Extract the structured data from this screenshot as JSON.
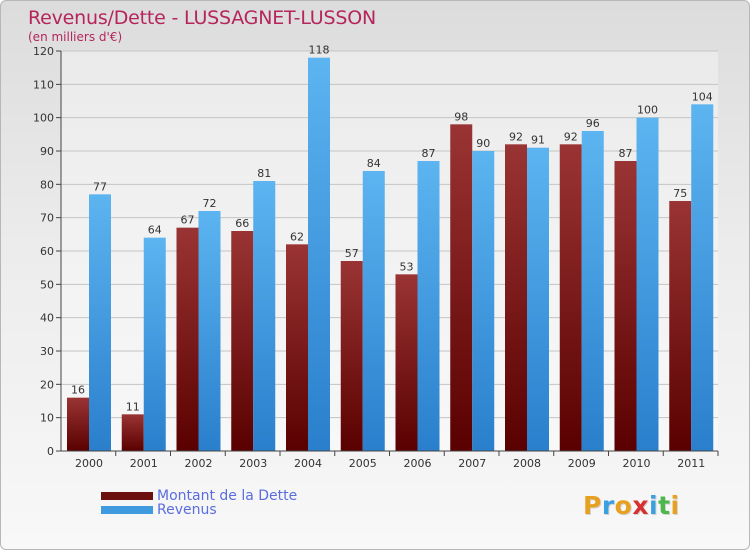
{
  "header": {
    "title": "Revenus/Dette - LUSSAGNET-LUSSON",
    "subtitle": "(en milliers d'€)"
  },
  "chart_data": {
    "type": "bar",
    "title": "Revenus/Dette - LUSSAGNET-LUSSON",
    "subtitle": "(en milliers d'€)",
    "categories": [
      "2000",
      "2001",
      "2002",
      "2003",
      "2004",
      "2005",
      "2006",
      "2007",
      "2008",
      "2009",
      "2010",
      "2011"
    ],
    "series": [
      {
        "name": "Montant de la Dette",
        "color": "#7a1a1a",
        "values": [
          16,
          11,
          67,
          66,
          62,
          57,
          53,
          98,
          92,
          92,
          87,
          75
        ]
      },
      {
        "name": "Revenus",
        "color": "#4aa3e6",
        "values": [
          77,
          64,
          72,
          81,
          118,
          84,
          87,
          90,
          91,
          96,
          100,
          104
        ]
      }
    ],
    "ylim": [
      0,
      120
    ],
    "yticks": [
      0,
      10,
      20,
      30,
      40,
      50,
      60,
      70,
      80,
      90,
      100,
      110,
      120
    ],
    "grid": true,
    "legend_position": "bottom-left"
  },
  "legend": {
    "items": [
      {
        "label": "Montant de la Dette",
        "color": "#6b0f0f"
      },
      {
        "label": "Revenus",
        "color": "#3f9ae0"
      }
    ]
  },
  "logo": {
    "letters": [
      {
        "ch": "P",
        "color": "#e8a020"
      },
      {
        "ch": "r",
        "color": "#3aa0e0"
      },
      {
        "ch": "o",
        "color": "#e8a020"
      },
      {
        "ch": "x",
        "color": "#d83030"
      },
      {
        "ch": "i",
        "color": "#3aa0e0"
      },
      {
        "ch": "t",
        "color": "#4cb84c"
      },
      {
        "ch": "i",
        "color": "#e8a020"
      }
    ]
  }
}
